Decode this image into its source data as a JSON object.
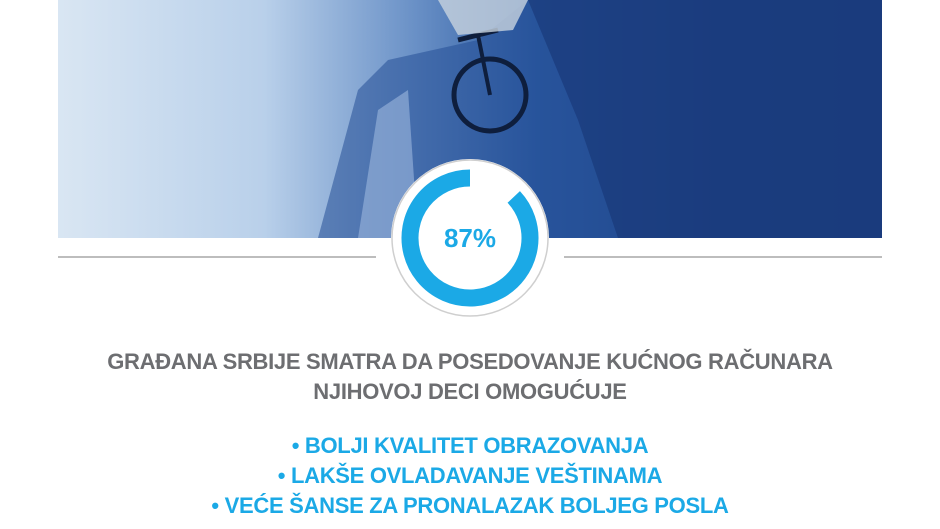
{
  "stat": {
    "value_percent": 87,
    "label": "87%",
    "ring_color": "#1ba9e6",
    "text_color": "#6d6e71"
  },
  "headline": {
    "line1": "GRAĐANA SRBIJE SMATRA DA POSEDOVANJE KUĆNOG RAČUNARA",
    "line2": "NJIHOVOJ DECI OMOGUĆUJE"
  },
  "benefits": [
    "• BOLJI KVALITET OBRAZOVANJA",
    "• LAKŠE OVLADAVANJE VEŠTINAMA",
    "• VEĆE ŠANSE ZA PRONALAZAK BOLJEG POSLA"
  ]
}
